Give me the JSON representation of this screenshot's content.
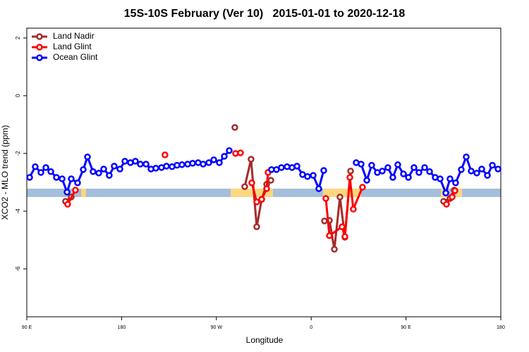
{
  "chart_data": {
    "type": "line",
    "title": "15S-10S February (Ver 10)   2015-01-01 to 2020-12-18",
    "x_label": "Longitude",
    "y_label": "XCO2 - MLO trend (ppm)",
    "xlim": [
      90,
      540
    ],
    "xticks": [
      {
        "value": 90,
        "label": "90 E"
      },
      {
        "value": 180,
        "label": "180"
      },
      {
        "value": 270,
        "label": "90 W"
      },
      {
        "value": 360,
        "label": "0"
      },
      {
        "value": 450,
        "label": "90 E"
      },
      {
        "value": 540,
        "label": "180"
      }
    ],
    "ylim": [
      -7.66,
      2.34
    ],
    "yticks": [
      -6,
      -4,
      -2,
      0,
      2
    ],
    "legend": "top-left",
    "surface_band": {
      "ylim": [
        -3.51,
        -3.22
      ],
      "ocean_color": "#a4bedc",
      "land_color": "#fcd77f",
      "land": [
        [
          141.6,
          146.2
        ],
        [
          283.5,
          323.7
        ],
        [
          371.3,
          407.4
        ],
        [
          483.0,
          489.8
        ],
        [
          497.8,
          503.2
        ]
      ]
    },
    "series": [
      {
        "name": "Land Nadir",
        "color": "#a52a2a",
        "x": [
          126.8,
          132.2,
          null,
          287.5,
          null,
          296.9,
          302.9,
          308.3,
          313.0,
          317.7,
          321.7,
          null,
          372.6,
          377.3,
          382.0,
          387.3,
          392.0,
          397.4,
          null,
          485.7,
          491.8,
          495.8
        ],
        "values": [
          -3.66,
          -3.51,
          null,
          -1.1,
          null,
          -3.15,
          -2.2,
          -4.54,
          -3.59,
          -3.07,
          -2.93,
          null,
          -4.34,
          -4.32,
          -5.32,
          -3.51,
          -4.9,
          -2.61,
          null,
          -3.66,
          -3.56,
          -3.27
        ]
      },
      {
        "name": "Land Glint",
        "color": "#ff0000",
        "x": [
          128.8,
          136.2,
          null,
          221.2,
          null,
          288.2,
          292.9,
          null,
          303.6,
          308.3,
          313.0,
          317.7,
          319.0,
          null,
          373.9,
          377.3,
          389.3,
          392.0,
          396.7,
          400.0,
          408.7,
          null,
          488.4,
          493.8,
          496.5
        ],
        "values": [
          -3.76,
          -3.27,
          null,
          -2.05,
          null,
          -2.0,
          -1.98,
          null,
          -3.02,
          -3.68,
          -3.59,
          -3.22,
          -2.66,
          null,
          -3.56,
          -4.85,
          -4.54,
          -4.88,
          -2.83,
          -3.93,
          -3.17,
          null,
          -3.76,
          -3.51,
          -3.29
        ]
      },
      {
        "name": "Ocean Glint",
        "color": "#0000ff",
        "x": [
          92.7,
          98.0,
          103.4,
          108.1,
          112.8,
          118.1,
          123.5,
          128.2,
          132.2,
          138.2,
          143.6,
          147.6,
          152.9,
          158.3,
          163.0,
          168.3,
          173.0,
          178.4,
          183.1,
          188.4,
          193.1,
          197.8,
          203.2,
          207.9,
          212.5,
          217.9,
          222.6,
          227.9,
          232.6,
          237.3,
          242.7,
          247.4,
          252.7,
          257.4,
          262.8,
          267.5,
          272.8,
          277.5,
          282.2,
          null,
          322.3,
          327.0,
          331.7,
          337.1,
          341.8,
          346.5,
          351.8,
          356.5,
          361.9,
          367.2,
          371.9,
          null,
          402.7,
          407.4,
          412.8,
          417.4,
          422.8,
          427.5,
          432.8,
          437.5,
          442.2,
          447.6,
          452.3,
          457.6,
          462.3,
          467.7,
          472.4,
          477.7,
          482.4,
          487.8,
          491.8,
          497.1,
          502.5,
          507.2,
          511.9,
          517.2,
          521.9,
          527.3,
          532.0,
          537.4
        ],
        "values": [
          -2.83,
          -2.46,
          -2.66,
          -2.49,
          -2.63,
          -2.83,
          -2.88,
          -3.34,
          -2.88,
          -3.02,
          -2.56,
          -2.12,
          -2.63,
          -2.68,
          -2.54,
          -2.76,
          -2.44,
          -2.54,
          -2.27,
          -2.32,
          -2.27,
          -2.37,
          -2.37,
          -2.54,
          -2.51,
          -2.49,
          -2.44,
          -2.46,
          -2.41,
          -2.39,
          -2.37,
          -2.34,
          -2.32,
          -2.37,
          -2.32,
          -2.22,
          -2.32,
          -2.1,
          -1.9,
          null,
          -2.56,
          -2.56,
          -2.49,
          -2.46,
          -2.49,
          -2.44,
          -2.73,
          -2.8,
          -2.76,
          -3.22,
          -2.59,
          null,
          -2.32,
          -2.37,
          -2.93,
          -2.41,
          -2.66,
          -2.61,
          -2.49,
          -2.83,
          -2.39,
          -2.71,
          -2.83,
          -2.49,
          -2.66,
          -2.49,
          -2.63,
          -2.83,
          -2.88,
          -3.37,
          -2.88,
          -3.02,
          -2.56,
          -2.12,
          -2.61,
          -2.68,
          -2.54,
          -2.76,
          -2.41,
          -2.54
        ]
      }
    ]
  }
}
